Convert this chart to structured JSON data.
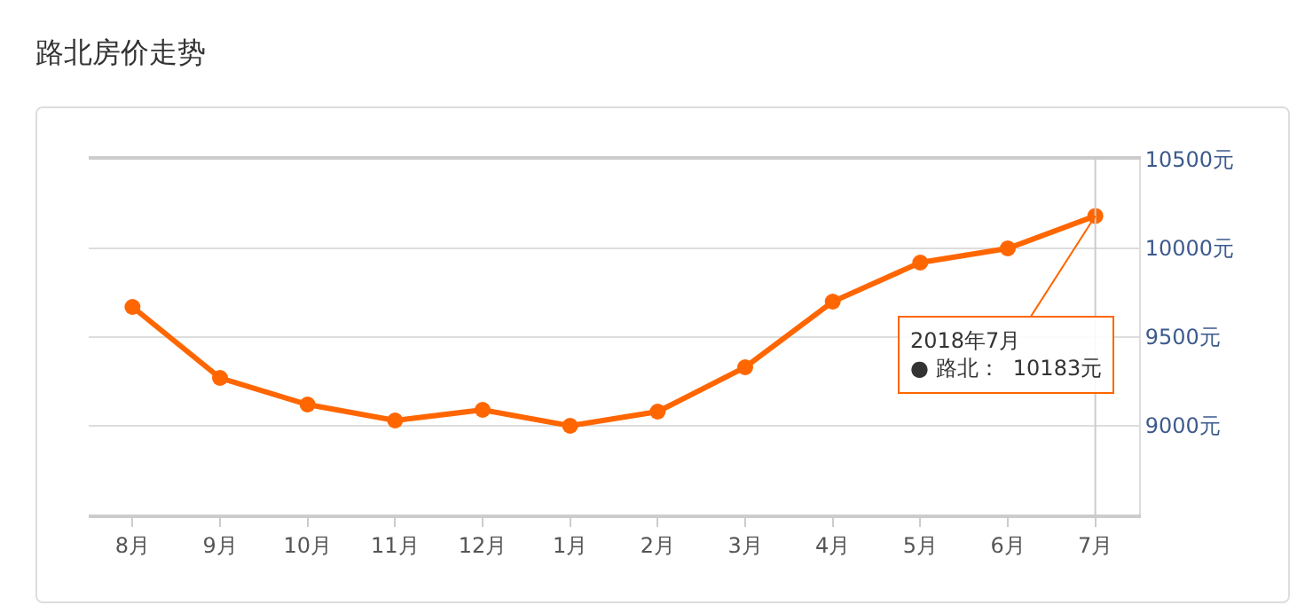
{
  "chart_data": {
    "type": "line",
    "title": "路北房价走势",
    "categories": [
      "8月",
      "9月",
      "10月",
      "11月",
      "12月",
      "1月",
      "2月",
      "3月",
      "4月",
      "5月",
      "6月",
      "7月"
    ],
    "series": [
      {
        "color": "#ff6600",
        "values": [
          9670,
          9270,
          9120,
          9030,
          9090,
          9000,
          9080,
          9330,
          9700,
          9920,
          10000,
          10183
        ]
      }
    ],
    "ylim": [
      8500,
      10500
    ],
    "yticks": [
      {
        "value": 9000,
        "label": "9000元"
      },
      {
        "value": 9500,
        "label": "9500元"
      },
      {
        "value": 10000,
        "label": "10000元"
      },
      {
        "value": 10500,
        "label": "10500元"
      }
    ],
    "annotations": [
      {
        "text": "2018年7月\n● 路北：  10183元",
        "x": "7月",
        "y": 10183
      }
    ],
    "ref_lines": [
      {
        "axis": "x",
        "value": "7月",
        "color": "#cccccc"
      }
    ],
    "grid": "y",
    "marker": "circle",
    "line_style": "solid",
    "legend": false
  }
}
